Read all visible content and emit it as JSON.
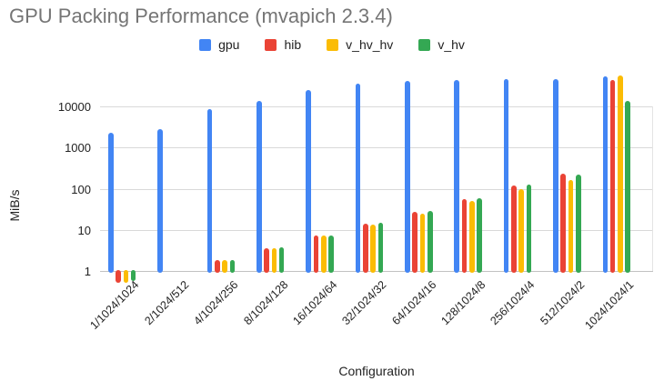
{
  "title": "GPU Packing Performance (mvapich 2.3.4)",
  "colors": {
    "title_text": "#757575",
    "axis_text": "#222222",
    "gridline": "#d9d9d9",
    "baseline": "#c2c2c2",
    "background": "#ffffff",
    "series_blue": "#4285F4",
    "series_red": "#EA4335",
    "series_yellow": "#FBBC04",
    "series_green": "#34A853"
  },
  "chart_data": {
    "type": "bar",
    "title": "GPU Packing Performance (mvapich 2.3.4)",
    "xlabel": "Configuration",
    "ylabel": "MiB/s",
    "y_scale": "log",
    "yticks": [
      1,
      10,
      100,
      1000,
      10000
    ],
    "ylim": [
      0.4,
      60000
    ],
    "grid": "horizontal-only",
    "legend_position": "top-center",
    "x_label_rotation_deg": -45,
    "categories": [
      "1/1024/1024",
      "2/1024/512",
      "4/1024/256",
      "8/1024/128",
      "16/1024/64",
      "32/1024/32",
      "64/1024/16",
      "128/1024/8",
      "256/1024/4",
      "512/1024/2",
      "1024/1024/1"
    ],
    "series": [
      {
        "name": "gpu",
        "color": "#4285F4",
        "values": [
          2300,
          2800,
          8500,
          13500,
          25000,
          36000,
          42000,
          44000,
          46000,
          46000,
          53000
        ]
      },
      {
        "name": "hib",
        "color": "#EA4335",
        "values": [
          0.55,
          null,
          1.85,
          3.6,
          7.2,
          14,
          28,
          55,
          120,
          230,
          44000
        ]
      },
      {
        "name": "v_hv_hv",
        "color": "#FBBC04",
        "values": [
          0.55,
          null,
          1.85,
          3.6,
          7.2,
          13.5,
          25,
          50,
          100,
          160,
          56000
        ]
      },
      {
        "name": "v_hv",
        "color": "#34A853",
        "values": [
          0.6,
          null,
          1.8,
          3.7,
          7.4,
          15,
          29,
          58,
          126,
          220,
          13500
        ]
      }
    ]
  }
}
